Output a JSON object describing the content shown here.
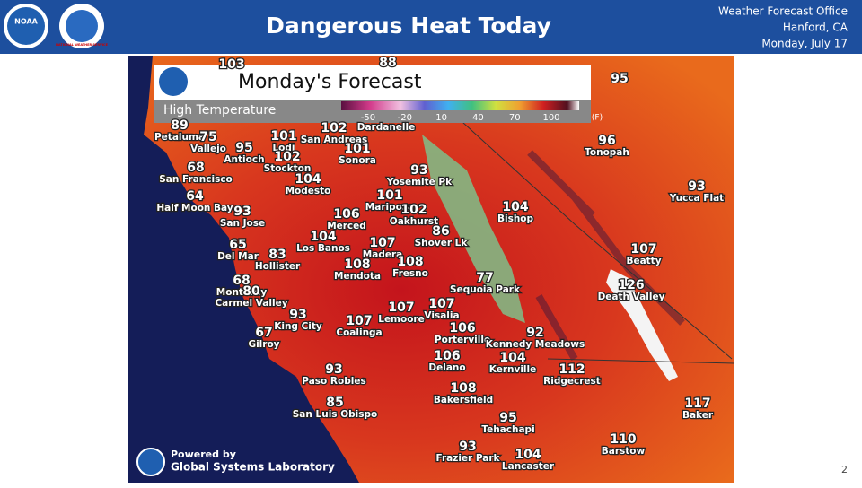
{
  "header": {
    "title": "Dangerous Heat Today",
    "office": [
      "Weather Forecast Office",
      "Hanford, CA",
      "Monday, July 17"
    ],
    "logos": [
      "NOAA",
      "NATIONAL WEATHER SERVICE"
    ]
  },
  "map": {
    "title": "Monday's Forecast",
    "legend_label": "High Temperature",
    "scale_ticks": [
      -50,
      -20,
      10,
      40,
      70,
      100
    ],
    "scale_unit": "(F)",
    "cities": [
      {
        "temp": 103
      },
      {
        "temp": 88
      },
      {
        "temp": 95
      },
      {
        "name": "Dardanelle"
      },
      {
        "temp": 89,
        "name": "Petaluma"
      },
      {
        "temp": 75,
        "name": "Vallejo"
      },
      {
        "temp": 101,
        "name": "Lodi"
      },
      {
        "temp": 102,
        "name": "San Andreas"
      },
      {
        "temp": 95,
        "name": "Antioch"
      },
      {
        "temp": 101,
        "name": "Sonora"
      },
      {
        "temp": 102,
        "name": "Stockton"
      },
      {
        "temp": 68,
        "name": "San Francisco"
      },
      {
        "temp": 96,
        "name": "Tonopah"
      },
      {
        "temp": 93,
        "name": "Yosemite Pk"
      },
      {
        "temp": 104,
        "name": "Modesto"
      },
      {
        "temp": 93,
        "name": "Yucca Flat"
      },
      {
        "temp": 64,
        "name": "Half Moon Bay"
      },
      {
        "temp": 93,
        "name": "San Jose"
      },
      {
        "temp": 101,
        "name": "Mariposa"
      },
      {
        "temp": 102,
        "name": "Oakhurst"
      },
      {
        "temp": 104,
        "name": "Bishop"
      },
      {
        "temp": 106,
        "name": "Merced"
      },
      {
        "temp": 104,
        "name": "Los Banos"
      },
      {
        "temp": 86,
        "name": "Shover Lk"
      },
      {
        "temp": 65,
        "name": "Del Mar"
      },
      {
        "temp": 83,
        "name": "Hollister"
      },
      {
        "temp": 107,
        "name": "Madera"
      },
      {
        "temp": 107,
        "name": "Beatty"
      },
      {
        "temp": 108,
        "name": "Fresno"
      },
      {
        "temp": 108,
        "name": "Mendota"
      },
      {
        "temp": 126,
        "name": "Death Valley"
      },
      {
        "temp": 68,
        "name": "Monterey"
      },
      {
        "temp": 80,
        "name": "Carmel Valley"
      },
      {
        "temp": 77,
        "name": "Sequoia Park"
      },
      {
        "temp": 107,
        "name": "Lemoore"
      },
      {
        "temp": 107,
        "name": "Visalia"
      },
      {
        "temp": 93,
        "name": "King City"
      },
      {
        "temp": 107,
        "name": "Coalinga"
      },
      {
        "temp": 106,
        "name": "Porterville"
      },
      {
        "temp": 67,
        "name": "Gilroy"
      },
      {
        "temp": 92,
        "name": "Kennedy Meadows"
      },
      {
        "temp": 104,
        "name": "Kernville"
      },
      {
        "temp": 106,
        "name": "Delano"
      },
      {
        "temp": 93,
        "name": "Paso Robles"
      },
      {
        "temp": 112,
        "name": "Ridgecrest"
      },
      {
        "temp": 108,
        "name": "Bakersfield"
      },
      {
        "temp": 117,
        "name": "Baker"
      },
      {
        "temp": 85,
        "name": "San Luis Obispo"
      },
      {
        "temp": 95,
        "name": "Tehachapi"
      },
      {
        "temp": 110,
        "name": "Barstow"
      },
      {
        "temp": 93,
        "name": "Frazier Park"
      },
      {
        "temp": 104,
        "name": "Lancaster"
      }
    ]
  },
  "footer": {
    "credit": [
      "Powered by",
      "Global Systems Laboratory"
    ],
    "page": "2"
  }
}
